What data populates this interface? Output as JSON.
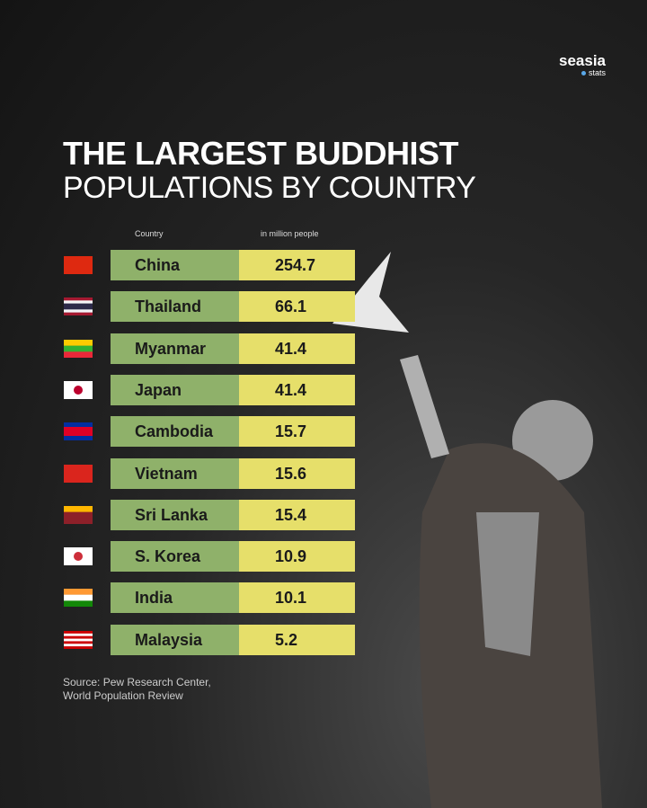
{
  "brand": {
    "name": "seasia",
    "tag": "stats"
  },
  "header": {
    "title": "THE LARGEST BUDDHIST",
    "subtitle": "POPULATIONS BY COUNTRY"
  },
  "table": {
    "columns": [
      "Country",
      "in million people"
    ],
    "rows": [
      [
        "China",
        254.7
      ],
      [
        "Thailand",
        66.1
      ],
      [
        "Myanmar",
        41.4
      ],
      [
        "Japan",
        41.4
      ],
      [
        "Cambodia",
        15.7
      ],
      [
        "Vietnam",
        15.6
      ],
      [
        "Sri Lanka",
        15.4
      ],
      [
        "S. Korea",
        10.9
      ],
      [
        "India",
        10.1
      ],
      [
        "Malaysia",
        5.2
      ]
    ]
  },
  "source": [
    "Source: Pew Research Center,",
    "World Population Review"
  ]
}
